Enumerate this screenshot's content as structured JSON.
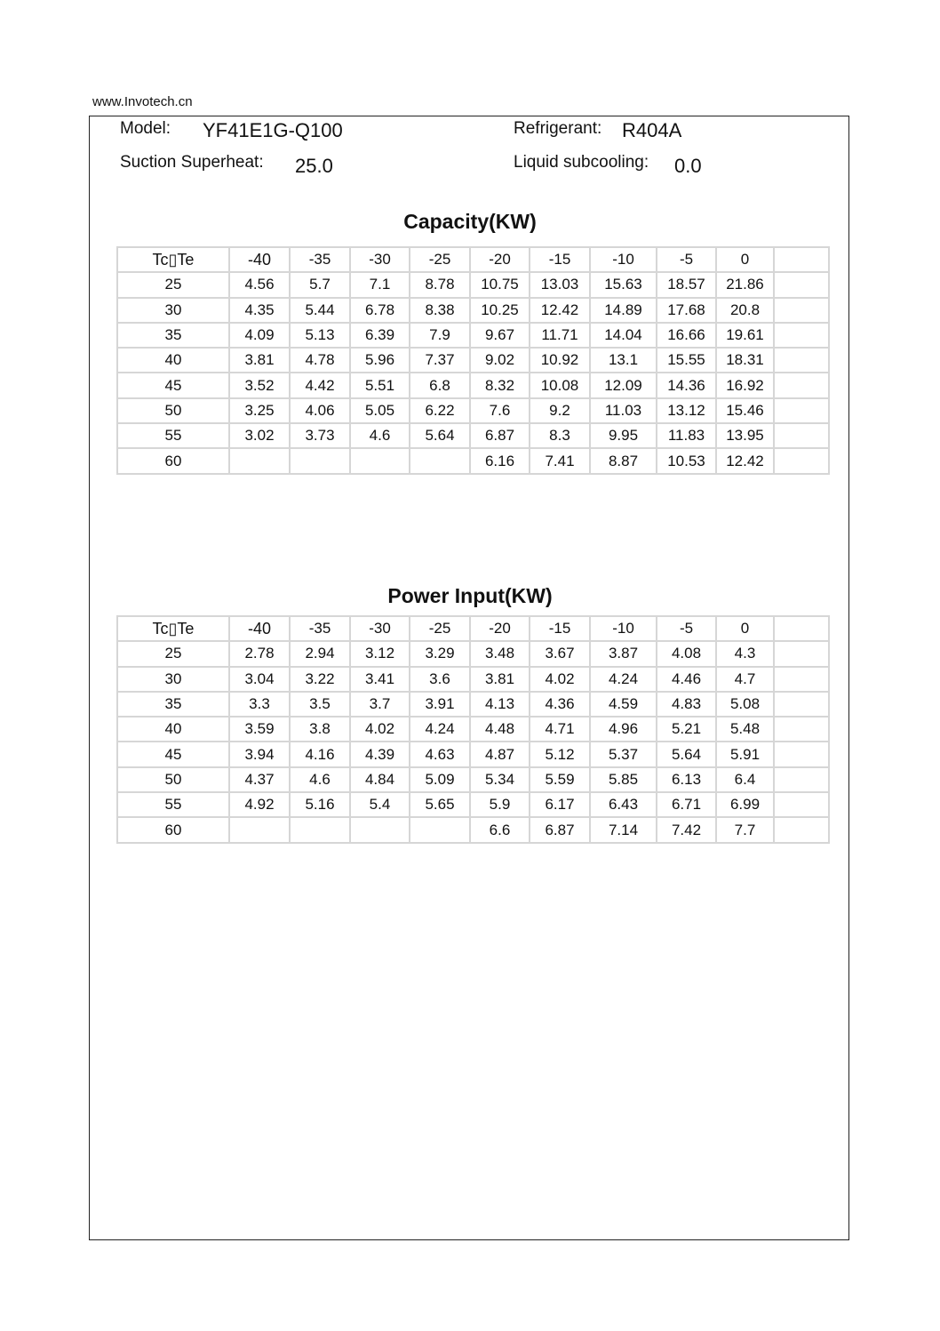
{
  "site": "www.Invotech.cn",
  "header": {
    "model_label": "Model:",
    "model": "YF41E1G-Q100",
    "refrigerant_label": "Refrigerant:",
    "refrigerant": "R404A",
    "superheat_label": "Suction Superheat:",
    "superheat": "25.0",
    "subcooling_label": "Liquid subcooling:",
    "subcooling": "0.0"
  },
  "capacity": {
    "title": "Capacity(KW)",
    "corner": "Tc▯Te",
    "columns": [
      "-40",
      "-35",
      "-30",
      "-25",
      "-20",
      "-15",
      "-10",
      "-5",
      "0",
      ""
    ],
    "rows": [
      [
        "25",
        "4.56",
        "5.7",
        "7.1",
        "8.78",
        "10.75",
        "13.03",
        "15.63",
        "18.57",
        "21.86",
        ""
      ],
      [
        "30",
        "4.35",
        "5.44",
        "6.78",
        "8.38",
        "10.25",
        "12.42",
        "14.89",
        "17.68",
        "20.8",
        ""
      ],
      [
        "35",
        "4.09",
        "5.13",
        "6.39",
        "7.9",
        "9.67",
        "11.71",
        "14.04",
        "16.66",
        "19.61",
        ""
      ],
      [
        "40",
        "3.81",
        "4.78",
        "5.96",
        "7.37",
        "9.02",
        "10.92",
        "13.1",
        "15.55",
        "18.31",
        ""
      ],
      [
        "45",
        "3.52",
        "4.42",
        "5.51",
        "6.8",
        "8.32",
        "10.08",
        "12.09",
        "14.36",
        "16.92",
        ""
      ],
      [
        "50",
        "3.25",
        "4.06",
        "5.05",
        "6.22",
        "7.6",
        "9.2",
        "11.03",
        "13.12",
        "15.46",
        ""
      ],
      [
        "55",
        "3.02",
        "3.73",
        "4.6",
        "5.64",
        "6.87",
        "8.3",
        "9.95",
        "11.83",
        "13.95",
        ""
      ],
      [
        "60",
        "",
        "",
        "",
        "",
        "6.16",
        "7.41",
        "8.87",
        "10.53",
        "12.42",
        ""
      ]
    ]
  },
  "power": {
    "title": "Power Input(KW)",
    "corner": "Tc▯Te",
    "columns": [
      "-40",
      "-35",
      "-30",
      "-25",
      "-20",
      "-15",
      "-10",
      "-5",
      "0",
      ""
    ],
    "rows": [
      [
        "25",
        "2.78",
        "2.94",
        "3.12",
        "3.29",
        "3.48",
        "3.67",
        "3.87",
        "4.08",
        "4.3",
        ""
      ],
      [
        "30",
        "3.04",
        "3.22",
        "3.41",
        "3.6",
        "3.81",
        "4.02",
        "4.24",
        "4.46",
        "4.7",
        ""
      ],
      [
        "35",
        "3.3",
        "3.5",
        "3.7",
        "3.91",
        "4.13",
        "4.36",
        "4.59",
        "4.83",
        "5.08",
        ""
      ],
      [
        "40",
        "3.59",
        "3.8",
        "4.02",
        "4.24",
        "4.48",
        "4.71",
        "4.96",
        "5.21",
        "5.48",
        ""
      ],
      [
        "45",
        "3.94",
        "4.16",
        "4.39",
        "4.63",
        "4.87",
        "5.12",
        "5.37",
        "5.64",
        "5.91",
        ""
      ],
      [
        "50",
        "4.37",
        "4.6",
        "4.84",
        "5.09",
        "5.34",
        "5.59",
        "5.85",
        "6.13",
        "6.4",
        ""
      ],
      [
        "55",
        "4.92",
        "5.16",
        "5.4",
        "5.65",
        "5.9",
        "6.17",
        "6.43",
        "6.71",
        "6.99",
        ""
      ],
      [
        "60",
        "",
        "",
        "",
        "",
        "6.6",
        "6.87",
        "7.14",
        "7.42",
        "7.7",
        ""
      ]
    ]
  }
}
